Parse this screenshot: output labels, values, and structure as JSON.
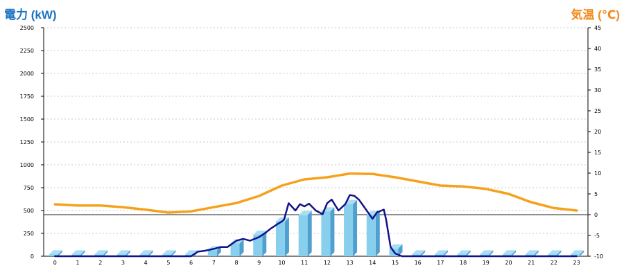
{
  "chart_data": {
    "type": "bar+line",
    "title_left": "電力 (kW)",
    "title_right": "気温 (℃)",
    "categories": [
      "0",
      "1",
      "2",
      "3",
      "4",
      "5",
      "6",
      "7",
      "8",
      "9",
      "10",
      "11",
      "12",
      "13",
      "14",
      "15",
      "16",
      "17",
      "18",
      "19",
      "20",
      "21",
      "22",
      "23"
    ],
    "y_left": {
      "min": 0,
      "max": 2500,
      "ticks": [
        0,
        250,
        500,
        750,
        1000,
        1250,
        1500,
        1750,
        2000,
        2250,
        2500
      ]
    },
    "y_right": {
      "min": -10,
      "max": 45,
      "ticks": [
        -10,
        -5,
        0,
        5,
        10,
        15,
        20,
        25,
        30,
        35,
        40,
        45
      ]
    },
    "reference_line_right": 0,
    "grid": "dotted horizontal",
    "bars": {
      "values": [
        20,
        20,
        20,
        20,
        20,
        20,
        20,
        65,
        140,
        235,
        380,
        450,
        490,
        570,
        450,
        85,
        20,
        20,
        20,
        20,
        20,
        20,
        20,
        20
      ]
    },
    "power_line": {
      "x": [
        0,
        1,
        2,
        3,
        4,
        5,
        6,
        6.3,
        6.6,
        7,
        7.3,
        7.6,
        8,
        8.3,
        8.6,
        9,
        9.3,
        9.5,
        9.8,
        10,
        10.1,
        10.3,
        10.6,
        10.8,
        11,
        11.2,
        11.5,
        11.8,
        12,
        12.2,
        12.5,
        12.8,
        13,
        13.2,
        13.4,
        13.6,
        13.8,
        14,
        14.2,
        14.4,
        14.5,
        14.6,
        14.8,
        15,
        15.3,
        16,
        17,
        18,
        19,
        20,
        21,
        22,
        23
      ],
      "values": [
        0,
        0,
        0,
        0,
        0,
        0,
        0,
        50,
        60,
        80,
        100,
        100,
        170,
        190,
        170,
        210,
        260,
        300,
        350,
        380,
        400,
        580,
        500,
        570,
        545,
        575,
        500,
        460,
        580,
        620,
        500,
        570,
        670,
        660,
        620,
        550,
        480,
        410,
        480,
        500,
        510,
        400,
        100,
        30,
        0,
        0,
        0,
        0,
        0,
        0,
        0,
        0,
        0
      ]
    },
    "temperature_line": {
      "values": [
        2.5,
        2.2,
        2.2,
        1.8,
        1.2,
        0.5,
        0.8,
        1.8,
        2.8,
        4.5,
        7,
        8.5,
        9,
        9.9,
        9.8,
        9,
        8,
        7,
        6.8,
        6.2,
        5,
        3,
        1.6,
        1
      ]
    },
    "colors": {
      "bar_front": "#87cfec",
      "bar_side": "#4f9fcf",
      "bar_top": "#a9dff5",
      "power_line": "#12128c",
      "temperature_line": "#f5a11c",
      "title_left": "#1b72c2",
      "title_right": "#f08a1c",
      "zero_line": "#222222",
      "grid": "#c8c8c8"
    }
  }
}
